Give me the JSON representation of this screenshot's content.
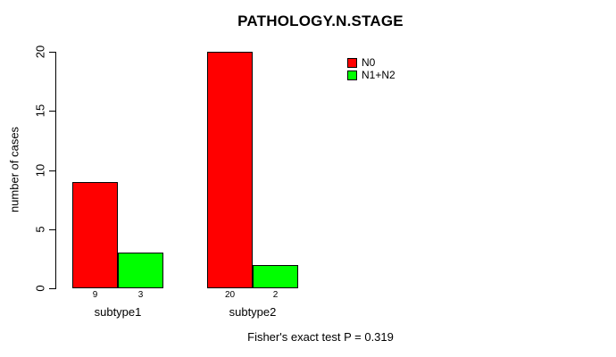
{
  "chart_data": {
    "type": "bar",
    "title": "PATHOLOGY.N.STAGE",
    "ylabel": "number of cases",
    "xlabel": "",
    "categories": [
      "subtype1",
      "subtype2"
    ],
    "series": [
      {
        "name": "N0",
        "color": "#FF0000",
        "values": [
          9,
          20
        ]
      },
      {
        "name": "N1+N2",
        "color": "#00FF00",
        "values": [
          3,
          2
        ]
      }
    ],
    "bar_value_labels": [
      [
        "9",
        "3"
      ],
      [
        "20",
        "2"
      ]
    ],
    "ylim": [
      0,
      20
    ],
    "yticks": [
      0,
      5,
      10,
      15,
      20
    ],
    "grid": false,
    "legend_position": "top-right",
    "annotation": "Fisher's exact test P = 0.319",
    "colors": {
      "background": "#FFFFFF",
      "axis": "#000000",
      "text": "#000000",
      "bar_border": "#000000"
    }
  }
}
